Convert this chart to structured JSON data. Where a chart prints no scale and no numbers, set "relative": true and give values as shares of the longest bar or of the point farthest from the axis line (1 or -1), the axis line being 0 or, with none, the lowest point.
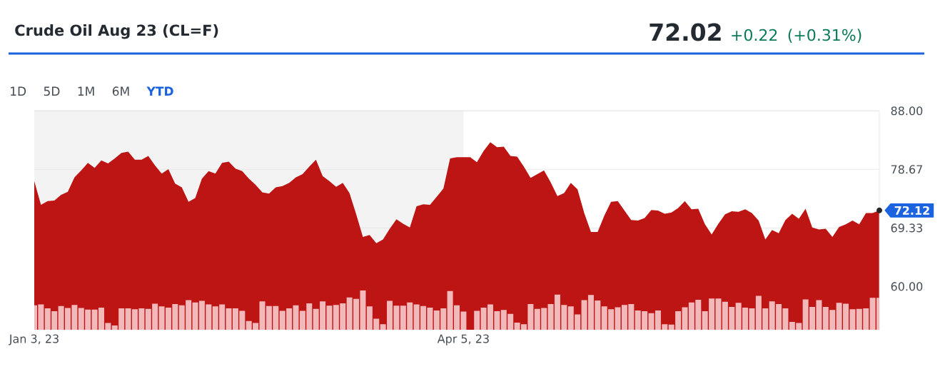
{
  "chart_data": [
    {
      "type": "area",
      "title": "Crude Oil Aug 23 (CL=F)",
      "color": "#bd1414",
      "grid": "y",
      "categories": [
        "Jan 3, 23",
        null,
        null,
        null,
        null,
        null,
        null,
        null,
        null,
        null,
        null,
        null,
        null,
        null,
        null,
        null,
        null,
        null,
        null,
        null,
        null,
        null,
        null,
        null,
        null,
        null,
        null,
        null,
        null,
        null,
        null,
        null,
        null,
        null,
        null,
        null,
        null,
        null,
        null,
        null,
        null,
        null,
        null,
        null,
        null,
        null,
        null,
        null,
        null,
        null,
        null,
        null,
        null,
        null,
        null,
        null,
        null,
        null,
        null,
        null,
        null,
        null,
        null,
        null,
        "Apr 5, 23",
        null,
        null,
        null,
        null,
        null,
        null,
        null,
        null,
        null,
        null,
        null,
        null,
        null,
        null,
        null,
        null,
        null,
        null,
        null,
        null,
        null,
        null,
        null,
        null,
        null,
        null,
        null,
        null,
        null,
        null,
        null,
        null,
        null,
        null,
        null,
        null,
        null,
        null,
        null,
        null,
        null,
        null,
        null,
        null,
        null,
        null,
        null,
        null,
        null,
        null,
        null,
        null,
        null,
        null,
        null,
        null,
        null,
        null,
        null,
        null,
        null,
        null
      ],
      "values": [
        76.8,
        73.0,
        73.6,
        73.7,
        74.6,
        75.1,
        77.4,
        78.5,
        79.7,
        78.9,
        80.1,
        79.6,
        80.4,
        81.3,
        81.5,
        80.2,
        80.2,
        80.8,
        79.3,
        78.0,
        78.7,
        76.4,
        75.8,
        73.5,
        74.1,
        77.2,
        78.4,
        78.0,
        79.7,
        79.9,
        78.8,
        78.4,
        77.2,
        76.2,
        75.0,
        74.8,
        75.8,
        76.0,
        76.5,
        77.4,
        77.9,
        79.1,
        80.2,
        77.6,
        76.8,
        75.9,
        76.5,
        74.9,
        71.5,
        67.9,
        68.2,
        66.9,
        67.5,
        69.2,
        70.7,
        70.0,
        69.4,
        72.8,
        73.1,
        73.0,
        74.3,
        75.6,
        80.4,
        80.6,
        80.6,
        80.6,
        79.8,
        81.6,
        83.0,
        82.2,
        82.3,
        80.8,
        80.7,
        79.1,
        77.3,
        77.9,
        78.5,
        76.6,
        74.4,
        74.9,
        76.5,
        75.5,
        71.7,
        68.7,
        68.7,
        71.3,
        73.5,
        73.6,
        72.1,
        70.6,
        70.5,
        70.9,
        72.2,
        72.1,
        71.6,
        71.8,
        72.5,
        73.6,
        72.3,
        72.4,
        69.9,
        68.3,
        70.0,
        71.5,
        72.0,
        71.9,
        72.3,
        71.7,
        70.5,
        67.5,
        69.0,
        68.5,
        70.6,
        71.6,
        70.8,
        72.4,
        69.4,
        69.1,
        69.2,
        67.9,
        69.5,
        69.9,
        70.5,
        69.9,
        71.7,
        71.7,
        72.12
      ],
      "ylim": [
        53.1,
        88
      ],
      "yticks": [
        {
          "value": 60,
          "label": "60.00"
        },
        69.33,
        78.67,
        {
          "value": 88,
          "label": "88.00"
        }
      ],
      "bands": [
        {
          "axis": "x",
          "from": "Jan 3, 23",
          "to": "Apr 5, 23",
          "color": "#f3f3f3"
        }
      ],
      "annotations": [
        "72.02",
        "+0.22",
        "(+0.31%)",
        "1D",
        "5D",
        "1M",
        "6M",
        "YTD",
        "72.12"
      ]
    },
    {
      "type": "bar",
      "relative": true,
      "color": "#f2b9bb",
      "categories": [
        null,
        null,
        null,
        null,
        null,
        null,
        null,
        null,
        null,
        null,
        null,
        null,
        null,
        null,
        null,
        null,
        null,
        null,
        null,
        null,
        null,
        null,
        null,
        null,
        null,
        null,
        null,
        null,
        null,
        null,
        null,
        null,
        null,
        null,
        null,
        null,
        null,
        null,
        null,
        null,
        null,
        null,
        null,
        null,
        null,
        null,
        null,
        null,
        null,
        null,
        null,
        null,
        null,
        null,
        null,
        null,
        null,
        null,
        null,
        null,
        null,
        null,
        null,
        null,
        null,
        null,
        null,
        null,
        null,
        null,
        null,
        null,
        null,
        null,
        null,
        null,
        null,
        null,
        null,
        null,
        null,
        null,
        null,
        null,
        null,
        null,
        null,
        null,
        null,
        null,
        null,
        null,
        null,
        null,
        null,
        null,
        null,
        null,
        null,
        null,
        null,
        null,
        null,
        null,
        null,
        null,
        null,
        null,
        null,
        null,
        null,
        null,
        null,
        null,
        null,
        null,
        null,
        null,
        null,
        null,
        null,
        null,
        null,
        null,
        null,
        null,
        null
      ],
      "values": [
        0.62,
        0.64,
        0.54,
        0.47,
        0.6,
        0.55,
        0.63,
        0.55,
        0.51,
        0.51,
        0.56,
        0.17,
        0.11,
        0.54,
        0.54,
        0.52,
        0.54,
        0.53,
        0.66,
        0.59,
        0.56,
        0.65,
        0.62,
        0.75,
        0.69,
        0.73,
        0.64,
        0.59,
        0.64,
        0.54,
        0.54,
        0.48,
        0.22,
        0.17,
        0.72,
        0.6,
        0.6,
        0.48,
        0.54,
        0.62,
        0.48,
        0.67,
        0.53,
        0.72,
        0.61,
        0.63,
        0.67,
        0.82,
        0.78,
        1,
        0.59,
        0.28,
        0.14,
        0.73,
        0.61,
        0.61,
        0.69,
        0.64,
        0.6,
        0.56,
        0.49,
        0.54,
        0.98,
        0.62,
        0.46,
        null,
        0.48,
        0.56,
        0.64,
        0.47,
        0.5,
        0.4,
        0.18,
        0.14,
        0.65,
        0.53,
        0.55,
        0.65,
        0.89,
        0.63,
        0.59,
        0.39,
        0.75,
        0.88,
        0.74,
        0.59,
        0.52,
        0.57,
        0.63,
        0.65,
        0.49,
        0.47,
        0.42,
        0.49,
        0.14,
        0.13,
        0.47,
        0.57,
        0.69,
        0.76,
        0.47,
        0.79,
        0.79,
        0.71,
        0.58,
        0.68,
        0.56,
        0.54,
        0.86,
        0.54,
        0.72,
        0.65,
        0.54,
        0.2,
        0.17,
        0.77,
        0.58,
        0.75,
        0.58,
        0.5,
        0.68,
        0.66,
        0.52,
        0.53,
        0.54,
        0.81,
        0.81
      ]
    }
  ]
}
